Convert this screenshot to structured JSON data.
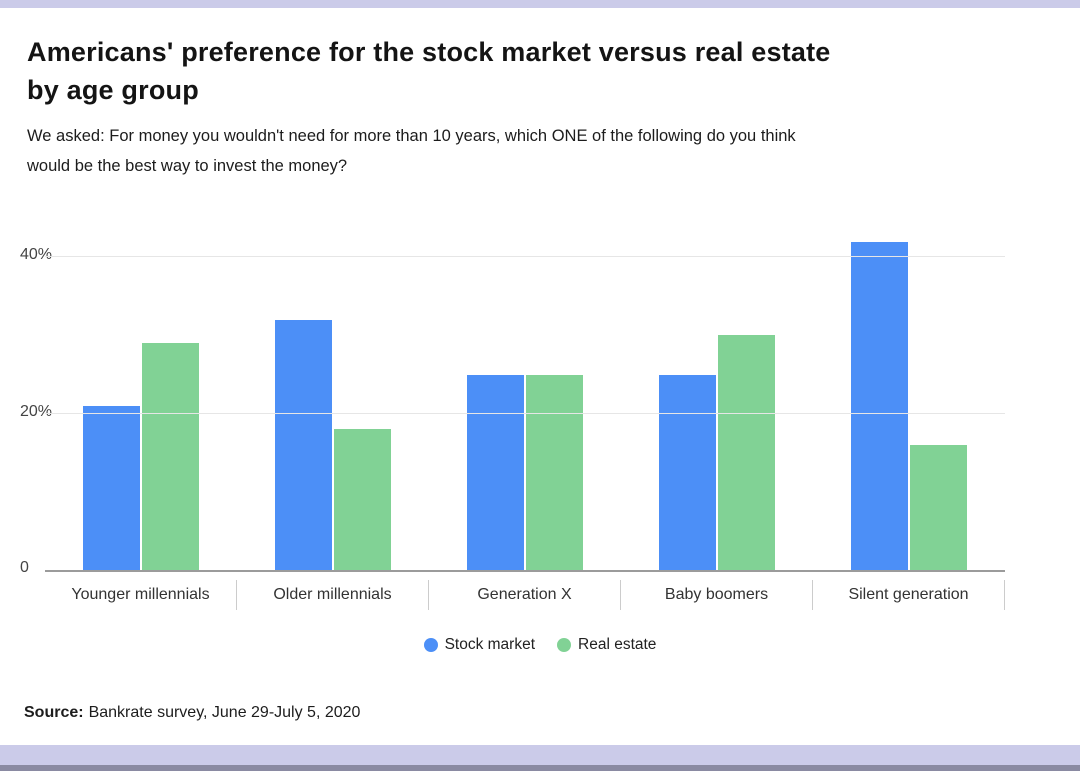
{
  "page": {
    "title_line1": "Americans' preference for the stock market versus real estate",
    "title_line2": "by age group",
    "subtitle_line1": "We asked: For money you wouldn't need for more than 10 years, which ONE of the following do you think",
    "subtitle_line2": "would be the best way to invest the money?",
    "source_label": "Source:",
    "source_text": "Bankrate survey, June 29-July 5, 2020"
  },
  "chart_data": {
    "type": "bar",
    "title": "Americans' preference for the stock market versus real estate by age group",
    "categories": [
      "Younger millennials",
      "Older millennials",
      "Generation X",
      "Baby boomers",
      "Silent generation"
    ],
    "series": [
      {
        "name": "Stock market",
        "color": "#4c8ff7",
        "values": [
          21,
          32,
          25,
          25,
          42
        ]
      },
      {
        "name": "Real estate",
        "color": "#81d295",
        "values": [
          29,
          18,
          25,
          30,
          16
        ]
      }
    ],
    "yticks": [
      {
        "value": 0,
        "label": "0"
      },
      {
        "value": 20,
        "label": "20%"
      },
      {
        "value": 40,
        "label": "40%"
      }
    ],
    "ylim": [
      0,
      44
    ],
    "grid": "horizontal",
    "legend_position": "bottom"
  }
}
